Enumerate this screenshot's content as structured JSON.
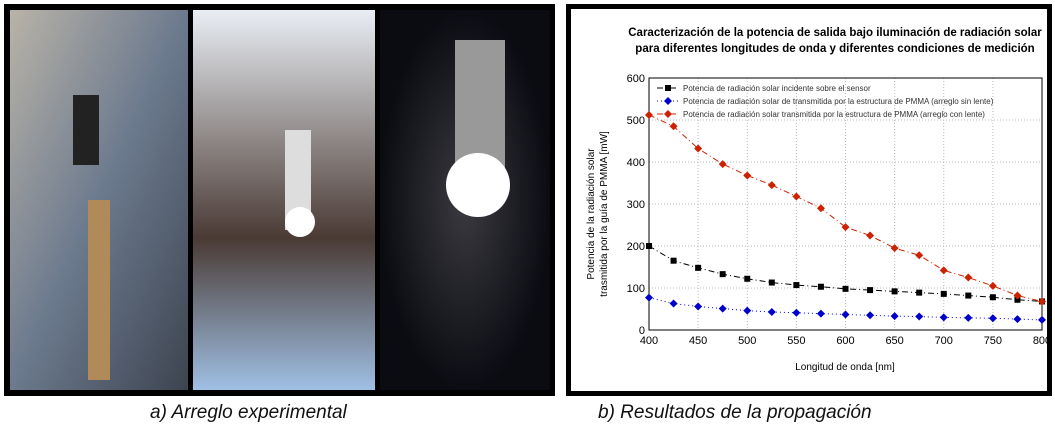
{
  "captions": {
    "left": "a)  Arreglo experimental",
    "right": "b) Resultados de la propagación"
  },
  "chart_data": {
    "type": "line",
    "title": "Caracterización de la potencia de salida bajo iluminación de radiación solar",
    "subtitle": "para diferentes longitudes de onda y diferentes condiciones de medición",
    "x_label": "Longitud de onda [nm]",
    "y_label": [
      "Potencia de la radiación solar",
      "trasmitida por la guía de PMMA [mW]"
    ],
    "x": [
      400,
      425,
      450,
      475,
      500,
      525,
      550,
      575,
      600,
      625,
      650,
      675,
      700,
      725,
      750,
      775,
      800
    ],
    "series": [
      {
        "name": "Potencia de radiación solar incidente sobre el sensor",
        "color": "#000000",
        "marker": "square",
        "values": [
          200,
          165,
          148,
          133,
          122,
          113,
          107,
          103,
          98,
          95,
          92,
          89,
          86,
          82,
          78,
          72,
          68
        ]
      },
      {
        "name": "Potencia de radiación solar de transmitida por la estructura de PMMA (arreglo sin lente)",
        "color": "#0000cc",
        "marker": "diamond",
        "values": [
          77,
          63,
          56,
          51,
          46,
          43,
          41,
          39,
          37,
          35,
          33,
          32,
          30,
          29,
          28,
          26,
          24
        ]
      },
      {
        "name": "Potencia de radiación solar transmitida por la estructura de PMMA (arreglo con lente)",
        "color": "#cc2200",
        "marker": "diamond",
        "values": [
          512,
          485,
          432,
          395,
          368,
          345,
          318,
          290,
          245,
          225,
          195,
          178,
          142,
          125,
          105,
          82,
          68
        ]
      }
    ],
    "xlim": [
      400,
      800
    ],
    "xticks": [
      400,
      450,
      500,
      550,
      600,
      650,
      700,
      750,
      800
    ],
    "ylim": [
      0,
      600
    ],
    "yticks": [
      0,
      100,
      200,
      300,
      400,
      500,
      600
    ],
    "grid": true,
    "legend": "top-left"
  }
}
